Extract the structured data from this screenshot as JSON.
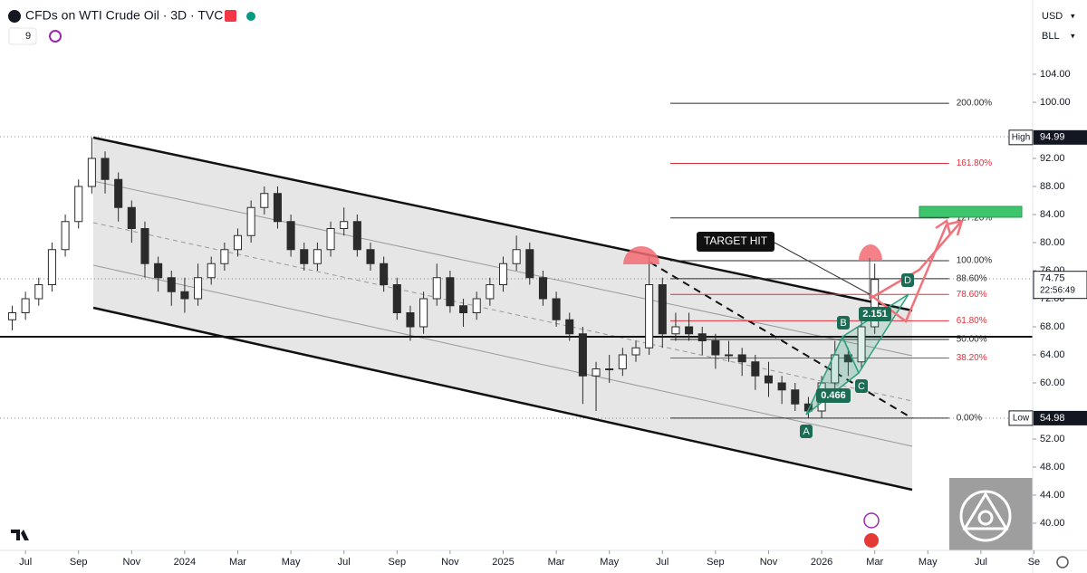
{
  "header": {
    "title": "CFDs on WTI Crude Oil · 3D · TVC",
    "interval": "9",
    "currency": "USD",
    "unit": "BLL"
  },
  "chart_data": {
    "type": "candlestick",
    "up_color": "#ffffff",
    "down_color": "#2b2b2b",
    "outline_color": "#2b2b2b",
    "xlim": [
      -0.96,
      37.95
    ],
    "ylim": [
      36.13,
      114.58
    ],
    "xticks": [
      {
        "value": 0,
        "label": "Jul"
      },
      {
        "value": 2,
        "label": "Sep"
      },
      {
        "value": 4,
        "label": "Nov"
      },
      {
        "value": 6,
        "label": "2024"
      },
      {
        "value": 8,
        "label": "Mar"
      },
      {
        "value": 10,
        "label": "May"
      },
      {
        "value": 12,
        "label": "Jul"
      },
      {
        "value": 14,
        "label": "Sep"
      },
      {
        "value": 16,
        "label": "Nov"
      },
      {
        "value": 18,
        "label": "2025"
      },
      {
        "value": 20,
        "label": "Mar"
      },
      {
        "value": 22,
        "label": "May"
      },
      {
        "value": 24,
        "label": "Jul"
      },
      {
        "value": 26,
        "label": "Sep"
      },
      {
        "value": 28,
        "label": "Nov"
      },
      {
        "value": 30,
        "label": "2026"
      },
      {
        "value": 32,
        "label": "Mar"
      },
      {
        "value": 34,
        "label": "May"
      },
      {
        "value": 36,
        "label": "Jul"
      },
      {
        "value": 38,
        "label": "Se"
      }
    ],
    "yticks": [
      {
        "value": 104,
        "label": "104.00"
      },
      {
        "value": 100,
        "label": "100.00"
      },
      {
        "value": 92,
        "label": "92.00"
      },
      {
        "value": 88,
        "label": "88.00"
      },
      {
        "value": 84,
        "label": "84.00"
      },
      {
        "value": 80,
        "label": "80.00"
      },
      {
        "value": 76,
        "label": "76.00"
      },
      {
        "value": 72,
        "label": "72.00"
      },
      {
        "value": 68,
        "label": "68.00"
      },
      {
        "value": 64,
        "label": "64.00"
      },
      {
        "value": 60,
        "label": "60.00"
      },
      {
        "value": 52,
        "label": "52.00"
      },
      {
        "value": 48,
        "label": "48.00"
      },
      {
        "value": 44,
        "label": "44.00"
      },
      {
        "value": 40,
        "label": "40.00"
      }
    ],
    "x": [
      -0.5,
      0,
      0.5,
      1,
      1.5,
      2,
      2.5,
      3,
      3.5,
      4,
      4.5,
      5,
      5.5,
      6,
      6.5,
      7,
      7.5,
      8,
      8.5,
      9,
      9.5,
      10,
      10.5,
      11,
      11.5,
      12,
      12.5,
      13,
      13.5,
      14,
      14.5,
      15,
      15.5,
      16,
      16.5,
      17,
      17.5,
      18,
      18.5,
      19,
      19.5,
      20,
      20.5,
      21,
      21.5,
      22,
      22.5,
      23,
      23.5,
      24,
      24.5,
      25,
      25.5,
      26,
      26.5,
      27,
      27.5,
      28,
      28.5,
      29,
      29.5,
      30,
      30.5,
      31,
      31.5,
      32
    ],
    "candles": [
      [
        69,
        71,
        67.5,
        70
      ],
      [
        70,
        73,
        69,
        72
      ],
      [
        72,
        75,
        71,
        74
      ],
      [
        74,
        80,
        73,
        79
      ],
      [
        79,
        84,
        78,
        83
      ],
      [
        83,
        89,
        82,
        88
      ],
      [
        88,
        95,
        87,
        92
      ],
      [
        92,
        93,
        87,
        89
      ],
      [
        89,
        90,
        83,
        85
      ],
      [
        85,
        86,
        80,
        82
      ],
      [
        82,
        83,
        75,
        77
      ],
      [
        77,
        78,
        73,
        75
      ],
      [
        75,
        76,
        71,
        73
      ],
      [
        73,
        75,
        70,
        72
      ],
      [
        72,
        77,
        71,
        75
      ],
      [
        75,
        78,
        74,
        77
      ],
      [
        77,
        80,
        76,
        79
      ],
      [
        79,
        82,
        78,
        81
      ],
      [
        81,
        86,
        80,
        85
      ],
      [
        85,
        88,
        84,
        87
      ],
      [
        87,
        88,
        82,
        83
      ],
      [
        83,
        84,
        78,
        79
      ],
      [
        79,
        80,
        76,
        77
      ],
      [
        77,
        80,
        76,
        79
      ],
      [
        79,
        83,
        78,
        82
      ],
      [
        82,
        85,
        81,
        83
      ],
      [
        83,
        84,
        78,
        79
      ],
      [
        79,
        80,
        76,
        77
      ],
      [
        77,
        78,
        73,
        74
      ],
      [
        74,
        75,
        69,
        70
      ],
      [
        70,
        71,
        66,
        68
      ],
      [
        68,
        73,
        67,
        72
      ],
      [
        72,
        77,
        71,
        75
      ],
      [
        75,
        76,
        70,
        71
      ],
      [
        71,
        72,
        68,
        70
      ],
      [
        70,
        73,
        69,
        72
      ],
      [
        72,
        75,
        71,
        74
      ],
      [
        74,
        78,
        73,
        77
      ],
      [
        77,
        81,
        76,
        79
      ],
      [
        79,
        80,
        74,
        75
      ],
      [
        75,
        76,
        71,
        72
      ],
      [
        72,
        73,
        68,
        69
      ],
      [
        69,
        70,
        66,
        67
      ],
      [
        67,
        68,
        57,
        61
      ],
      [
        61,
        63,
        56,
        62
      ],
      [
        62,
        64,
        60,
        62
      ],
      [
        62,
        65,
        61,
        64
      ],
      [
        64,
        66,
        63,
        65
      ],
      [
        65,
        78,
        64,
        74
      ],
      [
        74,
        75,
        65,
        67
      ],
      [
        67,
        70,
        66,
        68
      ],
      [
        68,
        70,
        66,
        67
      ],
      [
        67,
        68,
        64,
        66
      ],
      [
        66,
        67,
        62,
        64
      ],
      [
        64,
        66,
        63,
        64
      ],
      [
        64,
        65,
        61,
        63
      ],
      [
        63,
        64,
        59,
        61
      ],
      [
        61,
        63,
        58,
        60
      ],
      [
        60,
        61,
        57,
        59
      ],
      [
        59,
        60,
        56,
        57
      ],
      [
        57,
        58,
        55,
        56
      ],
      [
        56,
        61,
        55,
        60
      ],
      [
        60,
        66,
        59,
        64
      ],
      [
        64,
        65,
        61,
        63
      ],
      [
        63,
        69,
        62,
        68
      ],
      [
        68,
        77,
        67,
        74.75
      ]
    ],
    "high": {
      "label": "High",
      "value": 94.99
    },
    "low": {
      "label": "Low",
      "value": 54.98
    },
    "last": {
      "value": 74.75,
      "countdown": "22:56:49"
    },
    "fib_start": 24.3,
    "fib_end": 34.8,
    "fib_levels": [
      {
        "label": "200.00%",
        "price": 99.86,
        "color": "#2b2b2b"
      },
      {
        "label": "161.80%",
        "price": 91.29,
        "color": "#e0303a"
      },
      {
        "label": "127.20%",
        "price": 83.52,
        "color": "#2b2b2b"
      },
      {
        "label": "100.00%",
        "price": 77.42,
        "color": "#2b2b2b"
      },
      {
        "label": "88.60%",
        "price": 74.86,
        "color": "#2b2b2b"
      },
      {
        "label": "78.60%",
        "price": 72.62,
        "color": "#e0303a"
      },
      {
        "label": "61.80%",
        "price": 68.85,
        "color": "#e0303a"
      },
      {
        "label": "50.00%",
        "price": 66.2,
        "color": "#2b2b2b"
      },
      {
        "label": "38.20%",
        "price": 63.55,
        "color": "#e0303a"
      },
      {
        "label": "0.00%",
        "price": 54.98,
        "color": "#2b2b2b"
      }
    ],
    "annotations": {
      "target": "TARGET HIT",
      "A": "A",
      "B": "B",
      "C": "C",
      "D": "D",
      "ratio_bd": "2.151",
      "ratio_ac": "0.466"
    }
  }
}
